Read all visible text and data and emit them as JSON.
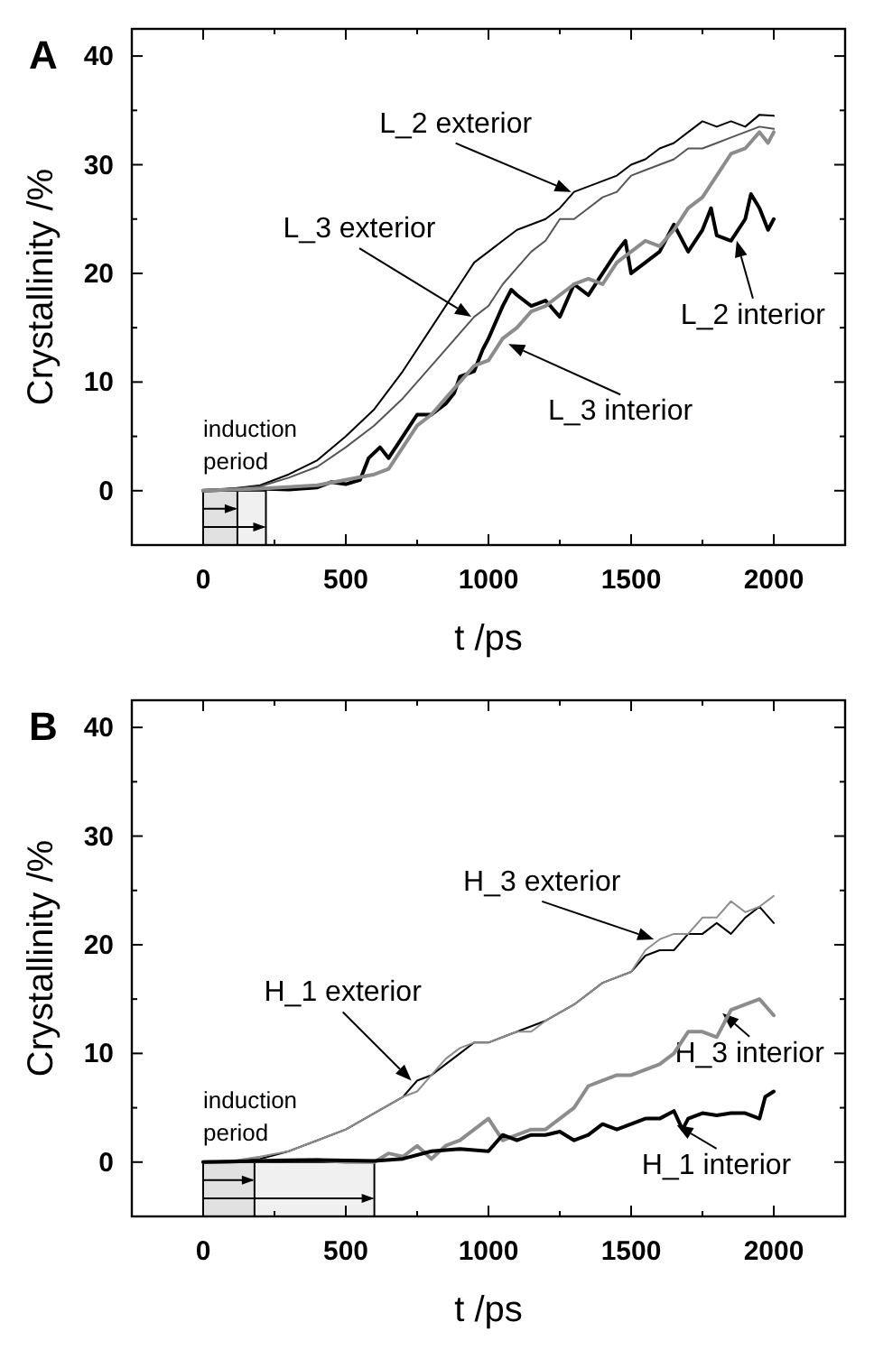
{
  "chart_data": [
    {
      "type": "line",
      "title": "A",
      "xlabel": "t /ps",
      "ylabel": "Crystallinity /%",
      "xlim": [
        -250,
        2250
      ],
      "ylim": [
        -5,
        42.5
      ],
      "xticks": [
        {
          "value": -250,
          "label": null
        },
        0,
        {
          "value": 250,
          "label": null
        },
        500,
        {
          "value": 750,
          "label": null
        },
        1000,
        {
          "value": 1250,
          "label": null
        },
        1500,
        {
          "value": 1750,
          "label": null
        },
        2000,
        {
          "value": 2250,
          "label": null
        }
      ],
      "yticks": [
        {
          "value": -5,
          "label": null
        },
        0,
        {
          "value": 5,
          "label": null
        },
        10,
        {
          "value": 15,
          "label": null
        },
        20,
        {
          "value": 25,
          "label": null
        },
        30,
        {
          "value": 35,
          "label": null
        },
        40
      ],
      "grid": false,
      "marker": "none",
      "line_style": "solid",
      "series": [
        {
          "color": "#000000",
          "x": [
            0,
            100,
            200,
            300,
            400,
            500,
            600,
            700,
            800,
            900,
            950,
            1000,
            1050,
            1100,
            1150,
            1200,
            1250,
            1300,
            1350,
            1400,
            1450,
            1500,
            1550,
            1600,
            1650,
            1700,
            1750,
            1800,
            1850,
            1900,
            1950,
            2000
          ],
          "values": [
            0,
            0.2,
            0.5,
            1.5,
            2.8,
            5,
            7.5,
            11,
            15,
            19,
            21,
            22,
            23,
            24,
            24.5,
            25,
            26,
            27.5,
            28,
            28.5,
            29,
            30,
            30.5,
            31.5,
            32,
            33,
            34,
            33.5,
            34,
            33.5,
            34.6,
            34.5
          ]
        },
        {
          "color": "#555555",
          "x": [
            0,
            100,
            200,
            300,
            400,
            500,
            600,
            700,
            800,
            900,
            950,
            1000,
            1050,
            1100,
            1150,
            1200,
            1250,
            1300,
            1350,
            1400,
            1450,
            1500,
            1550,
            1600,
            1650,
            1700,
            1750,
            1800,
            1850,
            1900,
            1950,
            2000
          ],
          "values": [
            0,
            0.2,
            0.4,
            1.2,
            2.2,
            4,
            6,
            8.5,
            11.5,
            14.5,
            16,
            17,
            19,
            20.5,
            22,
            23,
            25,
            25,
            26,
            27,
            27.5,
            29,
            29.5,
            30,
            30.5,
            31.5,
            31.5,
            32,
            32.5,
            33,
            33.5,
            33.3
          ]
        },
        {
          "color": "#000000",
          "x": [
            0,
            100,
            200,
            300,
            400,
            450,
            500,
            550,
            580,
            620,
            650,
            700,
            750,
            800,
            850,
            880,
            900,
            950,
            980,
            1000,
            1050,
            1080,
            1100,
            1150,
            1200,
            1250,
            1300,
            1350,
            1400,
            1450,
            1480,
            1500,
            1550,
            1600,
            1650,
            1700,
            1750,
            1780,
            1800,
            1850,
            1900,
            1920,
            1950,
            1980,
            2000
          ],
          "values": [
            0,
            0.1,
            0.2,
            0.1,
            0.3,
            0.8,
            0.6,
            1,
            3,
            4,
            3,
            5,
            7,
            7,
            8,
            9,
            10.5,
            11,
            13,
            14,
            17,
            18.5,
            18,
            17,
            17.5,
            16,
            19,
            18,
            20,
            22,
            23,
            20,
            21,
            22,
            24.5,
            22,
            24,
            26,
            23.5,
            23,
            25,
            27.3,
            26,
            24,
            25
          ]
        },
        {
          "color": "#8c8c8c",
          "x": [
            0,
            200,
            400,
            500,
            600,
            650,
            700,
            750,
            800,
            850,
            900,
            950,
            1000,
            1050,
            1100,
            1150,
            1200,
            1250,
            1300,
            1350,
            1400,
            1450,
            1500,
            1550,
            1600,
            1650,
            1700,
            1750,
            1800,
            1850,
            1900,
            1950,
            1980,
            2000
          ],
          "values": [
            0,
            0.2,
            0.5,
            1,
            1.5,
            2,
            4,
            6,
            7,
            8.5,
            10,
            11.5,
            12,
            14,
            15,
            16.5,
            17,
            18,
            19,
            19.5,
            19,
            21,
            22,
            23,
            22.5,
            24,
            26,
            27,
            29,
            31,
            31.5,
            33,
            32,
            33
          ]
        }
      ],
      "bands": [
        {
          "axis": "x",
          "from": 0,
          "to": 120,
          "label": "induction period"
        },
        {
          "axis": "x",
          "from": 0,
          "to": 220,
          "label": null
        }
      ],
      "annotations": [
        {
          "text": "L_2 exterior",
          "x": 1290,
          "y": 27.5
        },
        {
          "text": "L_3 exterior",
          "x": 940,
          "y": 16
        },
        {
          "text": "L_2 interior",
          "x": 1870,
          "y": 23
        },
        {
          "text": "L_3 interior",
          "x": 1070,
          "y": 13.5
        }
      ]
    },
    {
      "type": "line",
      "title": "B",
      "xlabel": "t /ps",
      "ylabel": "Crystallinity /%",
      "xlim": [
        -250,
        2250
      ],
      "ylim": [
        -5,
        42.5
      ],
      "xticks": [
        {
          "value": -250,
          "label": null
        },
        0,
        {
          "value": 250,
          "label": null
        },
        500,
        {
          "value": 750,
          "label": null
        },
        1000,
        {
          "value": 1250,
          "label": null
        },
        1500,
        {
          "value": 1750,
          "label": null
        },
        2000,
        {
          "value": 2250,
          "label": null
        }
      ],
      "yticks": [
        {
          "value": -5,
          "label": null
        },
        0,
        {
          "value": 5,
          "label": null
        },
        10,
        {
          "value": 15,
          "label": null
        },
        20,
        {
          "value": 25,
          "label": null
        },
        30,
        {
          "value": 35,
          "label": null
        },
        40
      ],
      "grid": false,
      "marker": "none",
      "line_style": "solid",
      "series": [
        {
          "color": "#000000",
          "x": [
            0,
            100,
            200,
            300,
            400,
            500,
            600,
            700,
            750,
            800,
            850,
            900,
            950,
            1000,
            1050,
            1100,
            1150,
            1200,
            1300,
            1400,
            1500,
            1550,
            1600,
            1650,
            1700,
            1750,
            1800,
            1850,
            1900,
            1950,
            2000
          ],
          "values": [
            0,
            0.1,
            0.3,
            1,
            2,
            3,
            4.5,
            6,
            7.5,
            8,
            9,
            10,
            11,
            11,
            11.5,
            12,
            12.5,
            13,
            14.5,
            16.5,
            17.5,
            19,
            19.5,
            19.5,
            21,
            21,
            22,
            21,
            22.5,
            23.5,
            22
          ]
        },
        {
          "color": "#8c8c8c",
          "x": [
            0,
            100,
            200,
            300,
            400,
            500,
            600,
            700,
            750,
            800,
            850,
            900,
            950,
            1000,
            1050,
            1100,
            1150,
            1200,
            1300,
            1400,
            1500,
            1550,
            1600,
            1650,
            1700,
            1750,
            1800,
            1850,
            1900,
            1950,
            2000
          ],
          "values": [
            0,
            0.1,
            0.5,
            1,
            2,
            3,
            4.5,
            6,
            6.5,
            8,
            9.5,
            10.5,
            11,
            11,
            11.5,
            12,
            12,
            13,
            14.5,
            16.5,
            17.5,
            19.5,
            20.5,
            21,
            21,
            22.5,
            22.5,
            24,
            23,
            23.5,
            24.5
          ]
        },
        {
          "color": "#8c8c8c",
          "x": [
            0,
            200,
            300,
            400,
            500,
            600,
            650,
            700,
            750,
            800,
            850,
            900,
            950,
            1000,
            1050,
            1100,
            1150,
            1200,
            1250,
            1300,
            1350,
            1400,
            1450,
            1500,
            1550,
            1600,
            1650,
            1700,
            1750,
            1800,
            1850,
            1900,
            1950,
            2000
          ],
          "values": [
            0,
            0.1,
            0.2,
            0.2,
            0,
            0,
            0.8,
            0.5,
            1.5,
            0.3,
            1.5,
            2,
            3,
            4,
            2,
            2.5,
            3,
            3,
            4,
            5,
            7,
            7.5,
            8,
            8,
            8.5,
            9,
            10,
            12,
            12,
            11.5,
            14,
            14.5,
            15,
            13.5
          ]
        },
        {
          "color": "#000000",
          "x": [
            0,
            200,
            400,
            600,
            700,
            800,
            900,
            1000,
            1050,
            1100,
            1150,
            1200,
            1250,
            1300,
            1350,
            1400,
            1450,
            1500,
            1550,
            1600,
            1650,
            1680,
            1700,
            1750,
            1800,
            1850,
            1900,
            1950,
            1970,
            2000
          ],
          "values": [
            0,
            0.1,
            0.2,
            0.1,
            0.3,
            1,
            1.2,
            1,
            2.5,
            2,
            2.5,
            2.5,
            2.8,
            2,
            2.5,
            3.5,
            3,
            3.5,
            4,
            4,
            4.7,
            3,
            4,
            4.5,
            4.3,
            4.5,
            4.5,
            4,
            6,
            6.5
          ]
        }
      ],
      "bands": [
        {
          "axis": "x",
          "from": 0,
          "to": 180,
          "label": "induction period"
        },
        {
          "axis": "x",
          "from": 0,
          "to": 600,
          "label": null
        }
      ],
      "annotations": [
        {
          "text": "H_3 exterior",
          "x": 1580,
          "y": 20.5
        },
        {
          "text": "H_1 exterior",
          "x": 730,
          "y": 7.5
        },
        {
          "text": "H_3 interior",
          "x": 1820,
          "y": 13.7
        },
        {
          "text": "H_1 interior",
          "x": 1660,
          "y": 3.4
        }
      ]
    }
  ]
}
